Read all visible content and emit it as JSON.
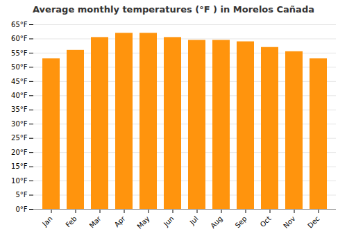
{
  "chart_data": {
    "type": "bar",
    "title": "Average monthly temperatures (°F ) in Morelos Cañada",
    "categories": [
      "Jan",
      "Feb",
      "Mar",
      "Apr",
      "May",
      "Jun",
      "Jul",
      "Aug",
      "Sep",
      "Oct",
      "Nov",
      "Dec"
    ],
    "values": [
      53,
      56,
      60.5,
      62,
      62,
      60.5,
      59.5,
      59.5,
      59,
      57,
      55.5,
      53
    ],
    "color": "#FF940D",
    "ylim": [
      0,
      65
    ],
    "yticks": [
      {
        "value": 0,
        "label": "0°F"
      },
      {
        "value": 5,
        "label": "5°F"
      },
      {
        "value": 10,
        "label": "10°F"
      },
      {
        "value": 15,
        "label": "15°F"
      },
      {
        "value": 20,
        "label": "20°F"
      },
      {
        "value": 25,
        "label": "25°F"
      },
      {
        "value": 30,
        "label": "30°F"
      },
      {
        "value": 35,
        "label": "35°F"
      },
      {
        "value": 40,
        "label": "40°F"
      },
      {
        "value": 45,
        "label": "45°F"
      },
      {
        "value": 50,
        "label": "50°F"
      },
      {
        "value": 55,
        "label": "55°F"
      },
      {
        "value": 60,
        "label": "60°F"
      },
      {
        "value": 65,
        "label": "65°F"
      }
    ],
    "grid": true
  }
}
